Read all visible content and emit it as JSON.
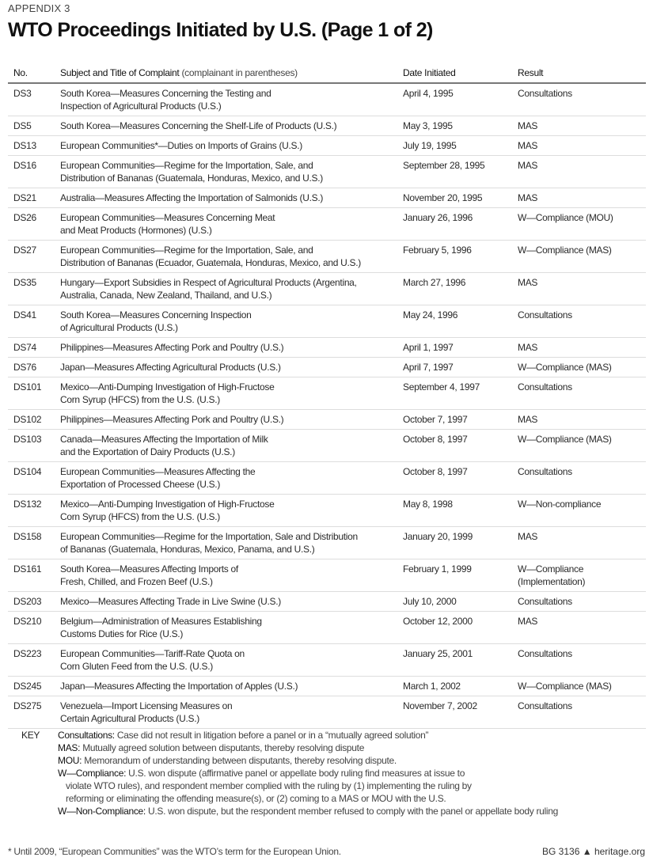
{
  "appendix": "APPENDIX 3",
  "title": "WTO Proceedings Initiated by U.S. (Page 1 of 2)",
  "columns": {
    "no": "No.",
    "subject_bold": "Subject and Title of Complaint",
    "subject_note": "(complainant in parentheses)",
    "date": "Date Initiated",
    "result": "Result"
  },
  "rows": [
    {
      "no": "DS3",
      "subject": "South Korea—Measures Concerning the Testing and\nInspection of Agricultural Products (U.S.)",
      "date": "April 4, 1995",
      "result": "Consultations"
    },
    {
      "no": "DS5",
      "subject": "South Korea—Measures Concerning the Shelf-Life of Products (U.S.)",
      "date": "May 3, 1995",
      "result": "MAS"
    },
    {
      "no": "DS13",
      "subject": "European Communities*—Duties on Imports of Grains (U.S.)",
      "date": "July 19, 1995",
      "result": "MAS"
    },
    {
      "no": "DS16",
      "subject": "European Communities—Regime for the Importation, Sale, and\nDistribution of Bananas (Guatemala, Honduras, Mexico, and U.S.)",
      "date": "September 28, 1995",
      "result": "MAS"
    },
    {
      "no": "DS21",
      "subject": "Australia—Measures Affecting the Importation of Salmonids (U.S.)",
      "date": "November 20, 1995",
      "result": "MAS"
    },
    {
      "no": "DS26",
      "subject": "European Communities—Measures Concerning Meat\nand Meat Products (Hormones) (U.S.)",
      "date": "January 26, 1996",
      "result": "W—Compliance (MOU)"
    },
    {
      "no": "DS27",
      "subject": "European Communities—Regime for the Importation, Sale, and\nDistribution of Bananas (Ecuador, Guatemala, Honduras, Mexico, and U.S.)",
      "date": "February 5, 1996",
      "result": "W—Compliance (MAS)"
    },
    {
      "no": "DS35",
      "subject": "Hungary—Export Subsidies in Respect of Agricultural Products (Argentina,\nAustralia, Canada, New Zealand, Thailand, and U.S.)",
      "date": "March 27, 1996",
      "result": "MAS"
    },
    {
      "no": "DS41",
      "subject": "South Korea—Measures Concerning Inspection\nof Agricultural Products (U.S.)",
      "date": "May 24, 1996",
      "result": "Consultations"
    },
    {
      "no": "DS74",
      "subject": "Philippines—Measures Affecting Pork and Poultry (U.S.)",
      "date": "April 1, 1997",
      "result": "MAS"
    },
    {
      "no": "DS76",
      "subject": "Japan—Measures Affecting Agricultural Products (U.S.)",
      "date": "April 7, 1997",
      "result": "W—Compliance (MAS)"
    },
    {
      "no": "DS101",
      "subject": "Mexico—Anti-Dumping Investigation of High-Fructose\nCorn Syrup (HFCS) from the U.S. (U.S.)",
      "date": "September 4, 1997",
      "result": "Consultations"
    },
    {
      "no": "DS102",
      "subject": "Philippines—Measures Affecting Pork and Poultry (U.S.)",
      "date": "October 7, 1997",
      "result": "MAS"
    },
    {
      "no": "DS103",
      "subject": "Canada—Measures Affecting the Importation of Milk\nand the Exportation of Dairy Products (U.S.)",
      "date": "October 8, 1997",
      "result": "W—Compliance (MAS)"
    },
    {
      "no": "DS104",
      "subject": "European Communities—Measures Affecting the\nExportation of Processed Cheese (U.S.)",
      "date": "October 8, 1997",
      "result": "Consultations"
    },
    {
      "no": "DS132",
      "subject": "Mexico—Anti-Dumping Investigation of High-Fructose\nCorn Syrup (HFCS) from the U.S. (U.S.)",
      "date": "May 8, 1998",
      "result": "W—Non-compliance"
    },
    {
      "no": "DS158",
      "subject": "European Communities—Regime for the Importation, Sale and Distribution\nof Bananas (Guatemala, Honduras, Mexico, Panama, and U.S.)",
      "date": "January 20, 1999",
      "result": "MAS"
    },
    {
      "no": "DS161",
      "subject": "South Korea—Measures Affecting Imports of\nFresh, Chilled, and Frozen Beef (U.S.)",
      "date": "February 1, 1999",
      "result": "W—Compliance\n(Implementation)"
    },
    {
      "no": "DS203",
      "subject": "Mexico—Measures Affecting Trade in Live Swine (U.S.)",
      "date": "July 10, 2000",
      "result": "Consultations"
    },
    {
      "no": "DS210",
      "subject": "Belgium—Administration of Measures Establishing\nCustoms Duties for Rice (U.S.)",
      "date": "October 12, 2000",
      "result": "MAS"
    },
    {
      "no": "DS223",
      "subject": "European Communities—Tariff-Rate Quota on\nCorn Gluten Feed from the U.S. (U.S.)",
      "date": "January 25, 2001",
      "result": "Consultations"
    },
    {
      "no": "DS245",
      "subject": "Japan—Measures Affecting the Importation of Apples (U.S.)",
      "date": "March 1, 2002",
      "result": "W—Compliance (MAS)"
    },
    {
      "no": "DS275",
      "subject": "Venezuela—Import Licensing Measures on\nCertain Agricultural Products (U.S.)",
      "date": "November 7, 2002",
      "result": "Consultations"
    }
  ],
  "key": {
    "label": "KEY",
    "items": [
      {
        "term": "Consultations:",
        "lines": [
          "Case did not result in litigation before a panel or in a “mutually agreed solution”"
        ]
      },
      {
        "term": "MAS:",
        "lines": [
          "Mutually agreed solution between disputants, thereby resolving dispute"
        ]
      },
      {
        "term": "MOU:",
        "lines": [
          "Memorandum of understanding between disputants, thereby resolving dispute."
        ]
      },
      {
        "term": "W—Compliance:",
        "lines": [
          "U.S. won dispute (affirmative panel or appellate body ruling find measures at issue to",
          "violate WTO rules), and respondent member complied with the ruling by (1) implementing the ruling by",
          "reforming or eliminating the offending measure(s), or (2) coming to a MAS or MOU with the U.S."
        ]
      },
      {
        "term": "W—Non-Compliance:",
        "lines": [
          "U.S. won dispute, but the respondent member refused to comply with the panel or appellate body ruling"
        ]
      }
    ]
  },
  "footnote": "* Until 2009, “European Communities” was the WTO’s term for the European Union.",
  "source": {
    "code": "BG 3136",
    "icon": "liberty-bell-icon",
    "site": "heritage.org"
  }
}
